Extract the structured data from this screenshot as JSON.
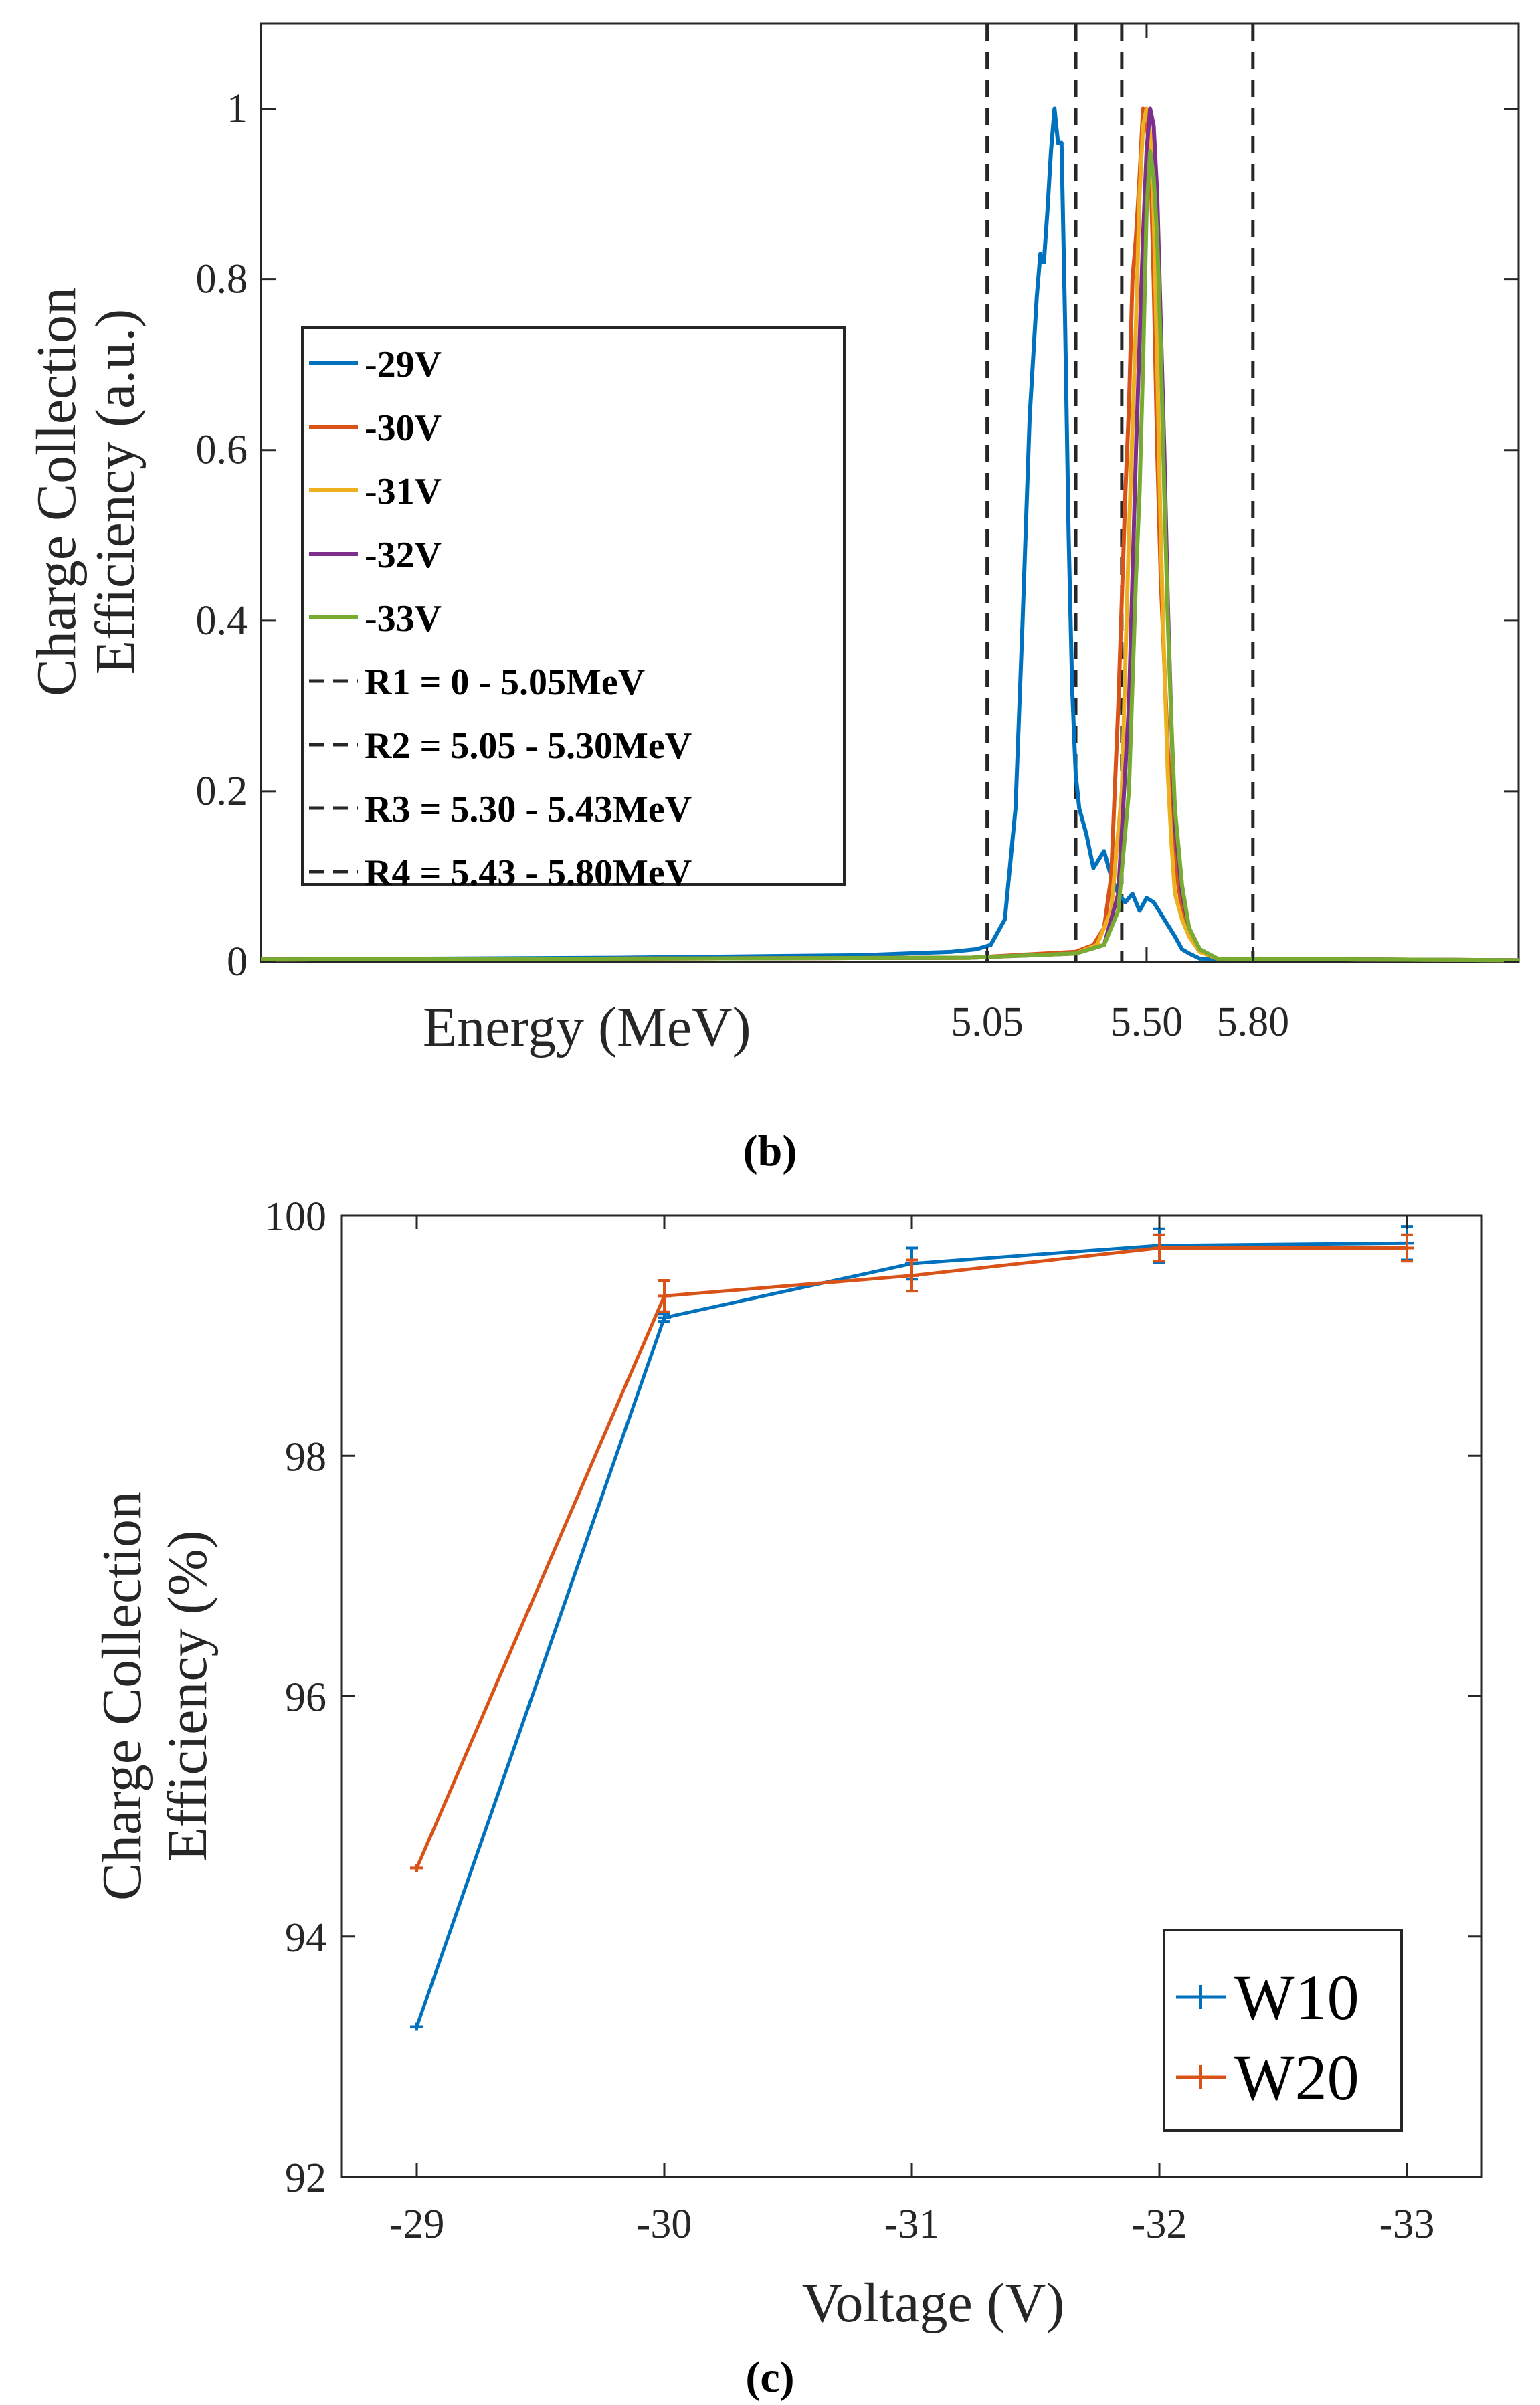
{
  "chart_data": [
    {
      "id": "b",
      "type": "line",
      "caption": "(b)",
      "xlabel": "Energy (MeV)",
      "ylabel_line1": "Charge Collection",
      "ylabel_line2": "Efficiency (a.u.)",
      "xlim": [
        3.0,
        6.55
      ],
      "ylim": [
        0,
        1.1
      ],
      "xticks": [
        5.05,
        5.5,
        5.8
      ],
      "xtick_labels": [
        "5.05",
        "5.50",
        "5.80"
      ],
      "yticks": [
        0,
        0.2,
        0.4,
        0.6,
        0.8,
        1
      ],
      "ytick_labels": [
        "0",
        "0.2",
        "0.4",
        "0.6",
        "0.8",
        "1"
      ],
      "vlines": [
        5.05,
        5.3,
        5.43,
        5.8
      ],
      "legend_position": "left-center",
      "series": [
        {
          "name": "-29V",
          "color": "#0072BD",
          "x": [
            3.0,
            4.0,
            4.7,
            4.95,
            5.02,
            5.06,
            5.1,
            5.13,
            5.15,
            5.17,
            5.19,
            5.2,
            5.21,
            5.22,
            5.23,
            5.24,
            5.25,
            5.26,
            5.27,
            5.28,
            5.29,
            5.3,
            5.31,
            5.33,
            5.35,
            5.38,
            5.4,
            5.42,
            5.44,
            5.46,
            5.48,
            5.5,
            5.52,
            5.55,
            5.58,
            5.6,
            5.62,
            5.65,
            6.55
          ],
          "y": [
            0.003,
            0.005,
            0.008,
            0.012,
            0.015,
            0.02,
            0.05,
            0.18,
            0.4,
            0.64,
            0.78,
            0.83,
            0.82,
            0.88,
            0.95,
            1.0,
            0.96,
            0.96,
            0.75,
            0.5,
            0.32,
            0.22,
            0.18,
            0.15,
            0.11,
            0.13,
            0.1,
            0.08,
            0.07,
            0.08,
            0.06,
            0.075,
            0.07,
            0.05,
            0.03,
            0.015,
            0.01,
            0.004,
            0.002
          ]
        },
        {
          "name": "-30V",
          "color": "#D95319",
          "x": [
            3.0,
            5.0,
            5.3,
            5.35,
            5.38,
            5.4,
            5.42,
            5.44,
            5.45,
            5.46,
            5.47,
            5.48,
            5.49,
            5.5,
            5.51,
            5.52,
            5.53,
            5.54,
            5.55,
            5.56,
            5.57,
            5.58,
            5.6,
            5.62,
            5.65,
            5.7,
            6.55
          ],
          "y": [
            0.003,
            0.005,
            0.012,
            0.02,
            0.04,
            0.1,
            0.3,
            0.55,
            0.65,
            0.8,
            0.85,
            0.92,
            1.0,
            0.98,
            0.95,
            0.8,
            0.6,
            0.45,
            0.35,
            0.25,
            0.18,
            0.12,
            0.06,
            0.03,
            0.012,
            0.004,
            0.002
          ]
        },
        {
          "name": "-31V",
          "color": "#EDB120",
          "x": [
            3.0,
            5.0,
            5.3,
            5.36,
            5.4,
            5.43,
            5.45,
            5.47,
            5.48,
            5.49,
            5.5,
            5.51,
            5.52,
            5.53,
            5.54,
            5.55,
            5.56,
            5.57,
            5.58,
            5.6,
            5.62,
            5.65,
            5.7,
            6.55
          ],
          "y": [
            0.003,
            0.005,
            0.01,
            0.02,
            0.06,
            0.2,
            0.5,
            0.75,
            0.9,
            0.98,
            1.0,
            0.97,
            0.88,
            0.7,
            0.5,
            0.35,
            0.22,
            0.14,
            0.08,
            0.05,
            0.03,
            0.012,
            0.004,
            0.002
          ]
        },
        {
          "name": "-32V",
          "color": "#7E2F8E",
          "x": [
            3.0,
            5.0,
            5.3,
            5.38,
            5.42,
            5.45,
            5.47,
            5.49,
            5.5,
            5.51,
            5.52,
            5.53,
            5.54,
            5.55,
            5.56,
            5.57,
            5.58,
            5.6,
            5.62,
            5.65,
            5.7,
            6.55
          ],
          "y": [
            0.003,
            0.005,
            0.01,
            0.02,
            0.08,
            0.3,
            0.6,
            0.85,
            0.95,
            1.0,
            0.98,
            0.9,
            0.75,
            0.6,
            0.42,
            0.28,
            0.16,
            0.08,
            0.04,
            0.015,
            0.004,
            0.002
          ]
        },
        {
          "name": "-33V",
          "color": "#77AC30",
          "x": [
            3.0,
            5.0,
            5.3,
            5.38,
            5.42,
            5.45,
            5.47,
            5.48,
            5.49,
            5.5,
            5.51,
            5.52,
            5.53,
            5.54,
            5.55,
            5.56,
            5.57,
            5.58,
            5.6,
            5.62,
            5.65,
            5.7,
            6.55
          ],
          "y": [
            0.003,
            0.005,
            0.01,
            0.02,
            0.06,
            0.2,
            0.45,
            0.55,
            0.7,
            0.88,
            0.95,
            0.92,
            0.85,
            0.72,
            0.55,
            0.4,
            0.28,
            0.18,
            0.09,
            0.04,
            0.015,
            0.004,
            0.002
          ]
        }
      ],
      "legend_ranges": [
        "R1 = 0 - 5.05MeV",
        "R2 = 5.05 - 5.30MeV",
        "R3 = 5.30 - 5.43MeV",
        "R4 = 5.43 - 5.80MeV"
      ]
    },
    {
      "id": "c",
      "type": "line",
      "caption": "(c)",
      "xlabel": "Voltage (V)",
      "ylabel_line1": "Charge Collection",
      "ylabel_line2": "Efficiency (%)",
      "categories": [
        "-29",
        "-30",
        "-31",
        "-32",
        "-33"
      ],
      "ylim": [
        92,
        100
      ],
      "yticks": [
        92,
        94,
        96,
        98,
        100
      ],
      "ytick_labels": [
        "92",
        "94",
        "96",
        "98",
        "100"
      ],
      "legend_position": "bottom-right",
      "series": [
        {
          "name": "W10",
          "color": "#0072BD",
          "values": [
            93.25,
            99.15,
            99.6,
            99.75,
            99.77
          ],
          "errors": [
            0.0,
            0.03,
            0.13,
            0.14,
            0.14
          ]
        },
        {
          "name": "W20",
          "color": "#D95319",
          "values": [
            94.57,
            99.33,
            99.5,
            99.73,
            99.73
          ],
          "errors": [
            0.0,
            0.13,
            0.13,
            0.11,
            0.11
          ]
        }
      ]
    }
  ]
}
